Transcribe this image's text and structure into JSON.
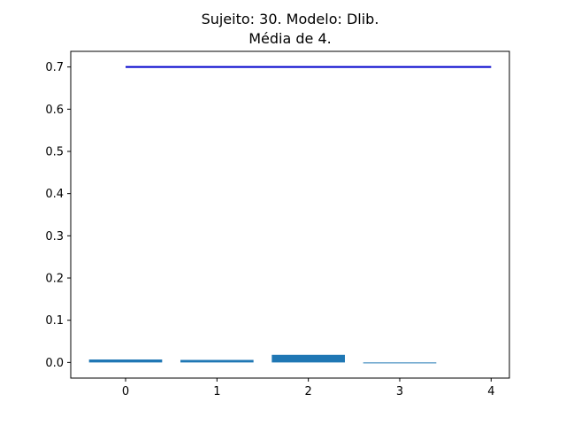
{
  "chart_data": {
    "type": "bar",
    "title_line1": "Sujeito: 30. Modelo: Dlib.",
    "title_line2": "Média de 4.",
    "xlabel": "",
    "ylabel": "",
    "categories": [
      0,
      1,
      2,
      3
    ],
    "values": [
      0.007,
      0.006,
      0.018,
      -0.002
    ],
    "bar_color": "#1f77b4",
    "reference_line": {
      "y": 0.7,
      "x_start": 0,
      "x_end": 4,
      "color": "#0000cc"
    },
    "xlim": [
      -0.6,
      4.2
    ],
    "ylim": [
      -0.037,
      0.737
    ],
    "xticks": [
      0,
      1,
      2,
      3,
      4
    ],
    "yticks": [
      0.0,
      0.1,
      0.2,
      0.3,
      0.4,
      0.5,
      0.6,
      0.7
    ],
    "ytick_labels": [
      "0.0",
      "0.1",
      "0.2",
      "0.3",
      "0.4",
      "0.5",
      "0.6",
      "0.7"
    ],
    "grid": false
  }
}
